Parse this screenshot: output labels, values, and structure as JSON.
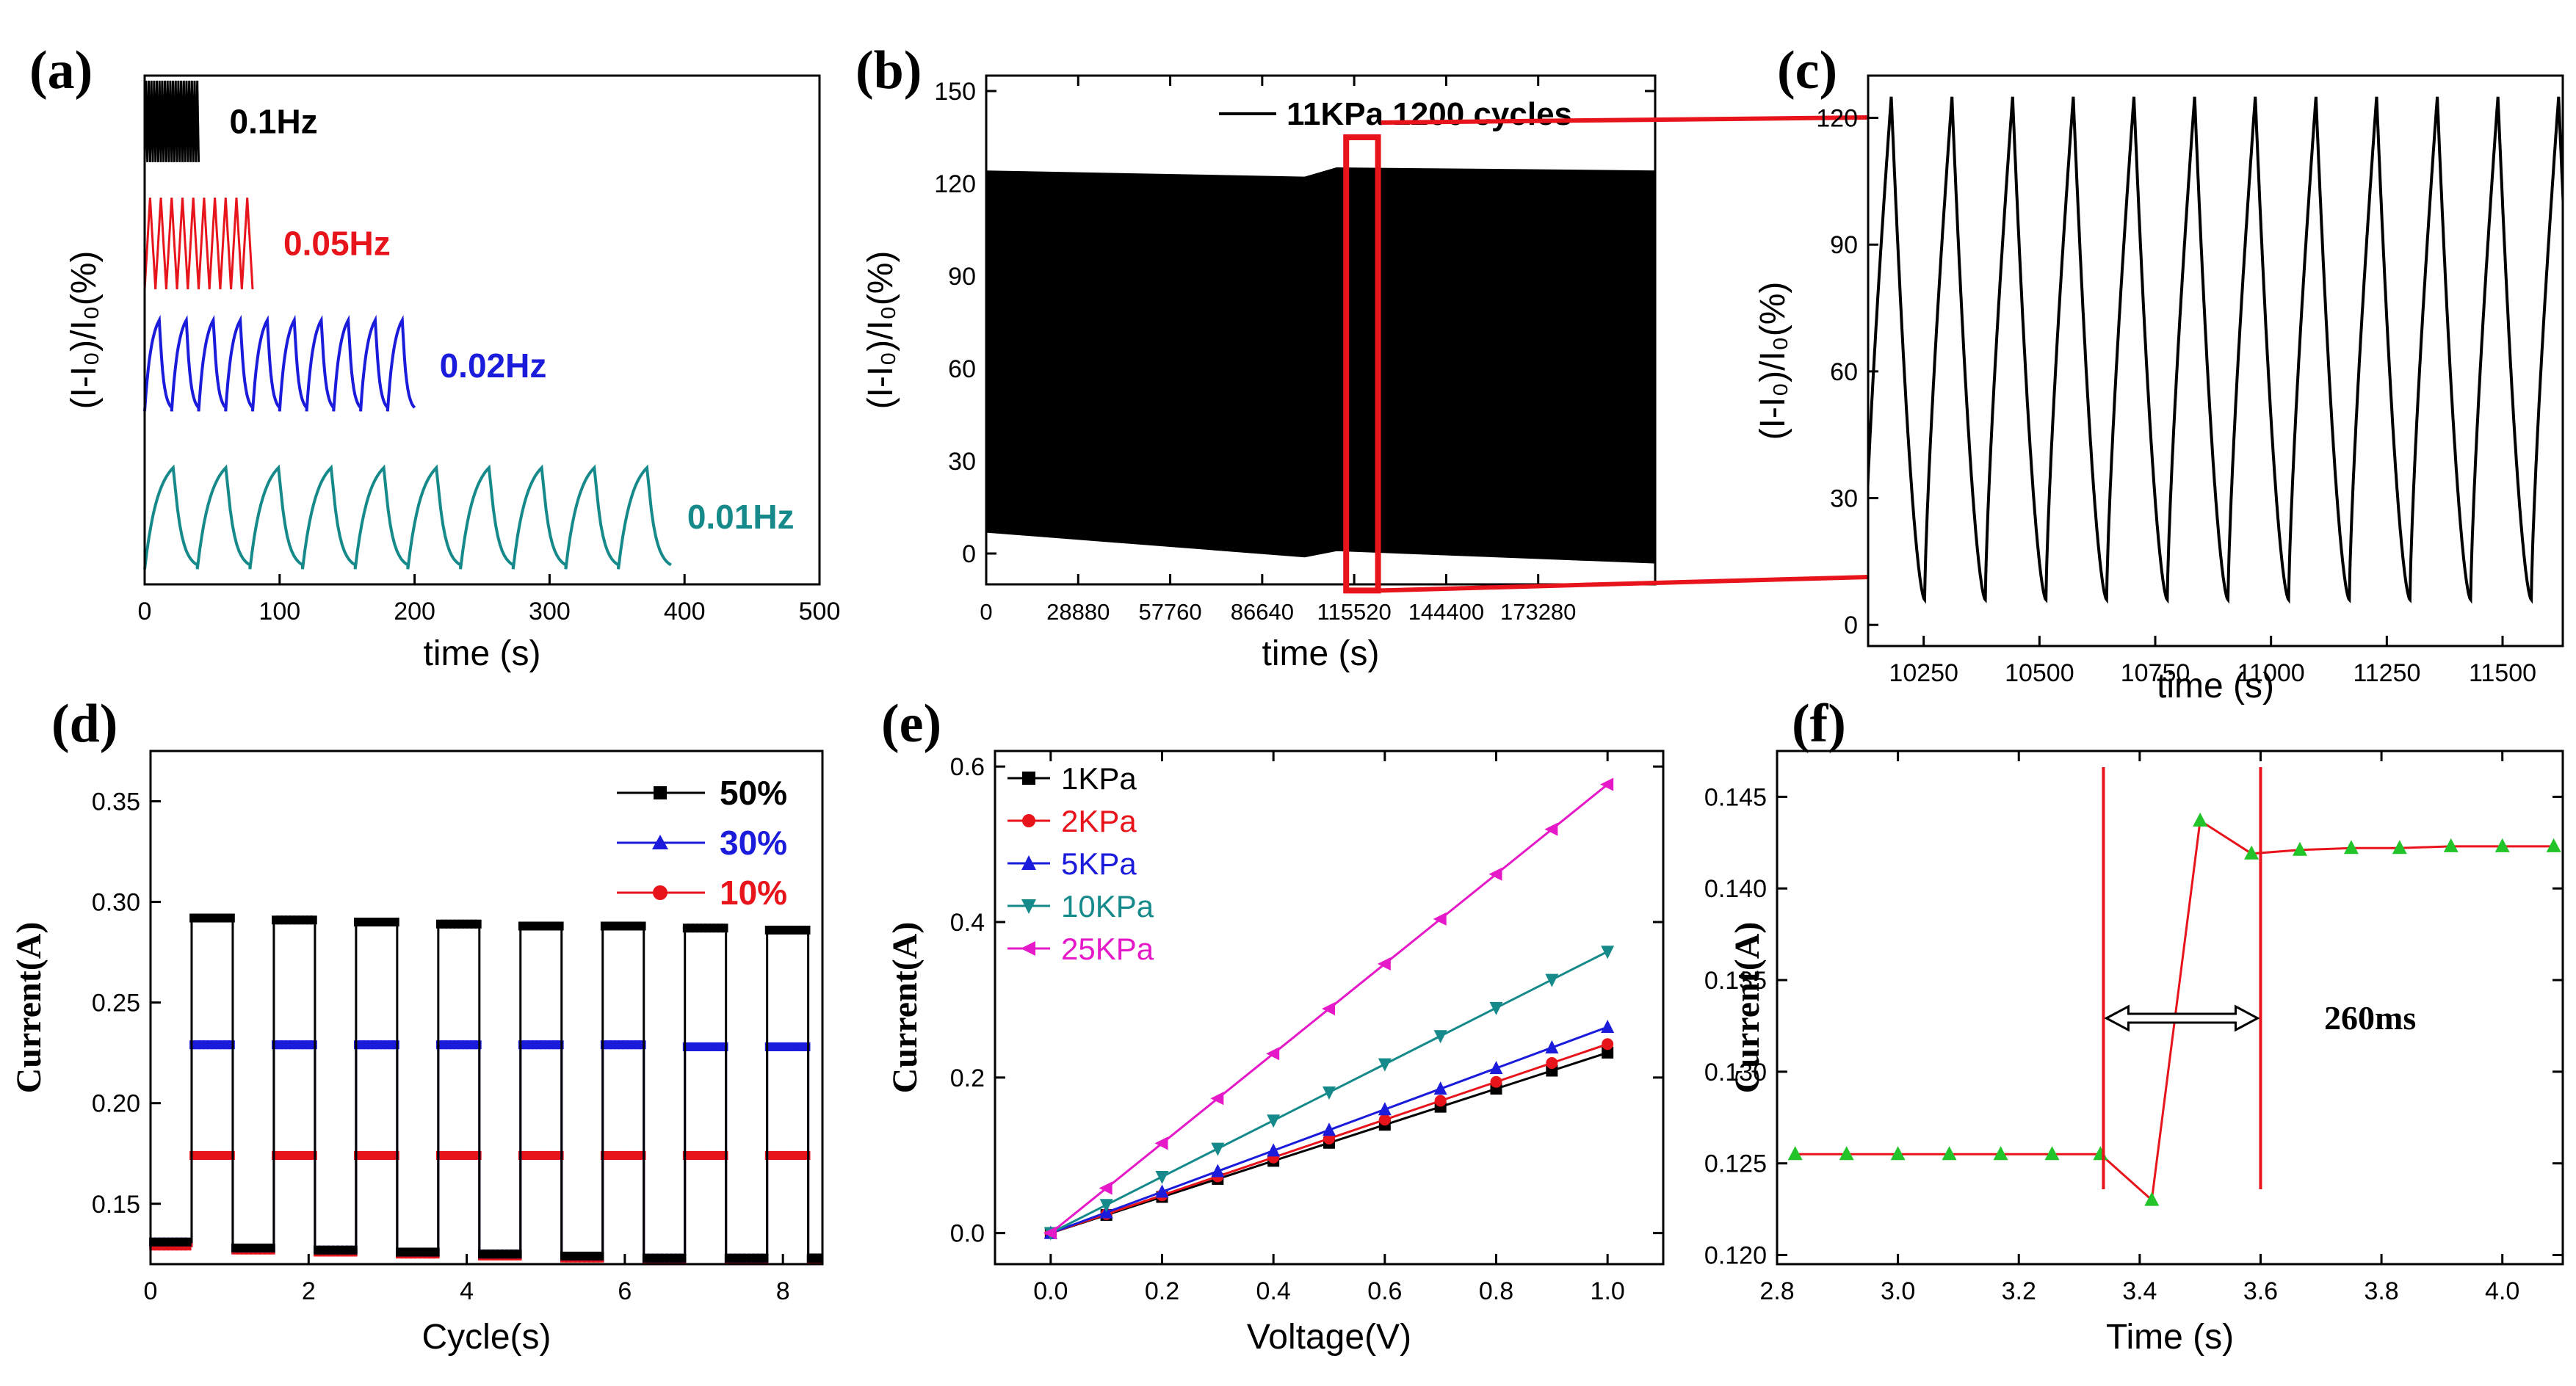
{
  "chart_data": [
    {
      "id": "a",
      "panel_label": "(a)",
      "type": "line",
      "xlabel": "time (s)",
      "ylabel": "(I-I₀)/I₀(%)",
      "xlim": [
        0,
        500
      ],
      "xticks": [
        0,
        100,
        200,
        300,
        400,
        500
      ],
      "yticks": [],
      "series": [
        {
          "name": "0.1Hz",
          "color": "#000000",
          "x_end": 40,
          "period": 2,
          "y_low": 0.83,
          "y_high": 0.99,
          "shape": "saw"
        },
        {
          "name": "0.05Hz",
          "color": "#e8141b",
          "x_end": 80,
          "period": 8,
          "y_low": 0.58,
          "y_high": 0.76,
          "shape": "saw"
        },
        {
          "name": "0.02Hz",
          "color": "#1b1bdb",
          "x_end": 200,
          "period": 20,
          "y_low": 0.34,
          "y_high": 0.52,
          "shape": "charge"
        },
        {
          "name": "0.01Hz",
          "color": "#168a8a",
          "x_end": 390,
          "period": 39,
          "y_low": 0.03,
          "y_high": 0.23,
          "shape": "charge"
        }
      ]
    },
    {
      "id": "b",
      "panel_label": "(b)",
      "type": "area",
      "xlabel": "time (s)",
      "ylabel": "(I-I₀)/I₀(%)",
      "xlim": [
        0,
        210000
      ],
      "ylim": [
        -10,
        155
      ],
      "xticks": [
        0,
        28880,
        57760,
        86640,
        115520,
        144400,
        173280
      ],
      "yticks": [
        0,
        30,
        60,
        90,
        120,
        150
      ],
      "legend": "11KPa 1200 cycles",
      "envelope_x": [
        0,
        100000,
        110000,
        210000
      ],
      "envelope_top": [
        124,
        122,
        125,
        124
      ],
      "envelope_bottom": [
        7,
        -1,
        1,
        -3
      ],
      "highlight": {
        "x_from": 113000,
        "x_to": 123000,
        "y_from": -12,
        "y_to": 135
      }
    },
    {
      "id": "c",
      "panel_label": "(c)",
      "type": "line",
      "xlabel": "time (s)",
      "ylabel": "(I-I₀)/I₀(%)",
      "xlim": [
        10130,
        11630
      ],
      "ylim": [
        -5,
        130
      ],
      "xticks": [
        10250,
        10500,
        10750,
        11000,
        11250,
        11500
      ],
      "yticks": [
        0,
        30,
        60,
        90,
        120
      ],
      "first_peak": 10180,
      "period": 131,
      "y_peak": 125,
      "y_low": 6
    },
    {
      "id": "d",
      "panel_label": "(d)",
      "type": "line",
      "xlabel": "Cycle(s)",
      "ylabel": "Current(A)",
      "xlim": [
        0,
        8.5
      ],
      "ylim": [
        0.12,
        0.375
      ],
      "xticks": [
        0,
        2,
        4,
        6,
        8
      ],
      "yticks": [
        0.15,
        0.2,
        0.25,
        0.3,
        0.35
      ],
      "period": 1.04,
      "on_duration": 0.52,
      "on_start": 0.52,
      "series": [
        {
          "name": "50%",
          "color": "#000000",
          "high": [
            0.292,
            0.291,
            0.29,
            0.289,
            0.288,
            0.288,
            0.287,
            0.286
          ],
          "low": [
            0.131,
            0.128,
            0.127,
            0.126,
            0.125,
            0.124,
            0.123,
            0.123
          ]
        },
        {
          "name": "30%",
          "color": "#1b1bdb",
          "high": [
            0.229,
            0.229,
            0.229,
            0.229,
            0.229,
            0.229,
            0.228,
            0.228
          ],
          "low": [
            0.131,
            0.128,
            0.127,
            0.126,
            0.125,
            0.124,
            0.123,
            0.123
          ]
        },
        {
          "name": "10%",
          "color": "#e8141b",
          "high": [
            0.174,
            0.174,
            0.174,
            0.174,
            0.174,
            0.174,
            0.174,
            0.174
          ],
          "low": [
            0.129,
            0.127,
            0.126,
            0.125,
            0.124,
            0.123,
            0.122,
            0.122
          ]
        }
      ]
    },
    {
      "id": "e",
      "panel_label": "(e)",
      "type": "line",
      "xlabel": "Voltage(V)",
      "ylabel": "Current(A)",
      "xlim": [
        -0.1,
        1.1
      ],
      "ylim": [
        -0.04,
        0.62
      ],
      "xticks": [
        0.0,
        0.2,
        0.4,
        0.6,
        0.8,
        1.0
      ],
      "yticks": [
        0.0,
        0.2,
        0.4,
        0.6
      ],
      "x": [
        0,
        0.1,
        0.2,
        0.3,
        0.4,
        0.5,
        0.6,
        0.7,
        0.8,
        0.9,
        1.0
      ],
      "series": [
        {
          "name": "1KPa",
          "color": "#000000",
          "marker": "square",
          "slope": 0.232
        },
        {
          "name": "2KPa",
          "color": "#e8141b",
          "marker": "circle",
          "slope": 0.243
        },
        {
          "name": "5KPa",
          "color": "#1b1bdb",
          "marker": "triangle-up",
          "slope": 0.265
        },
        {
          "name": "10KPa",
          "color": "#168a8a",
          "marker": "triangle-down",
          "slope": 0.362
        },
        {
          "name": "25KPa",
          "color": "#e619c8",
          "marker": "triangle-left",
          "slope": 0.577
        }
      ]
    },
    {
      "id": "f",
      "panel_label": "(f)",
      "type": "line",
      "xlabel": "Time (s)",
      "ylabel": "Current(A)",
      "xlim": [
        2.8,
        4.1
      ],
      "ylim": [
        0.1195,
        0.1475
      ],
      "xticks": [
        2.8,
        3.0,
        3.2,
        3.4,
        3.6,
        3.8,
        4.0
      ],
      "yticks": [
        0.12,
        0.125,
        0.13,
        0.135,
        0.14,
        0.145
      ],
      "x": [
        2.83,
        2.915,
        3.0,
        3.085,
        3.17,
        3.255,
        3.335,
        3.42,
        3.5,
        3.585,
        3.665,
        3.75,
        3.83,
        3.915,
        4.0,
        4.085
      ],
      "y": [
        0.1255,
        0.1255,
        0.1255,
        0.1255,
        0.1255,
        0.1255,
        0.1255,
        0.123,
        0.1437,
        0.1419,
        0.1421,
        0.1422,
        0.1422,
        0.1423,
        0.1423,
        0.1423
      ],
      "line_color": "#e8141b",
      "marker_color": "#22c42a",
      "vlines": [
        3.34,
        3.6
      ],
      "annotation": "260ms"
    }
  ]
}
